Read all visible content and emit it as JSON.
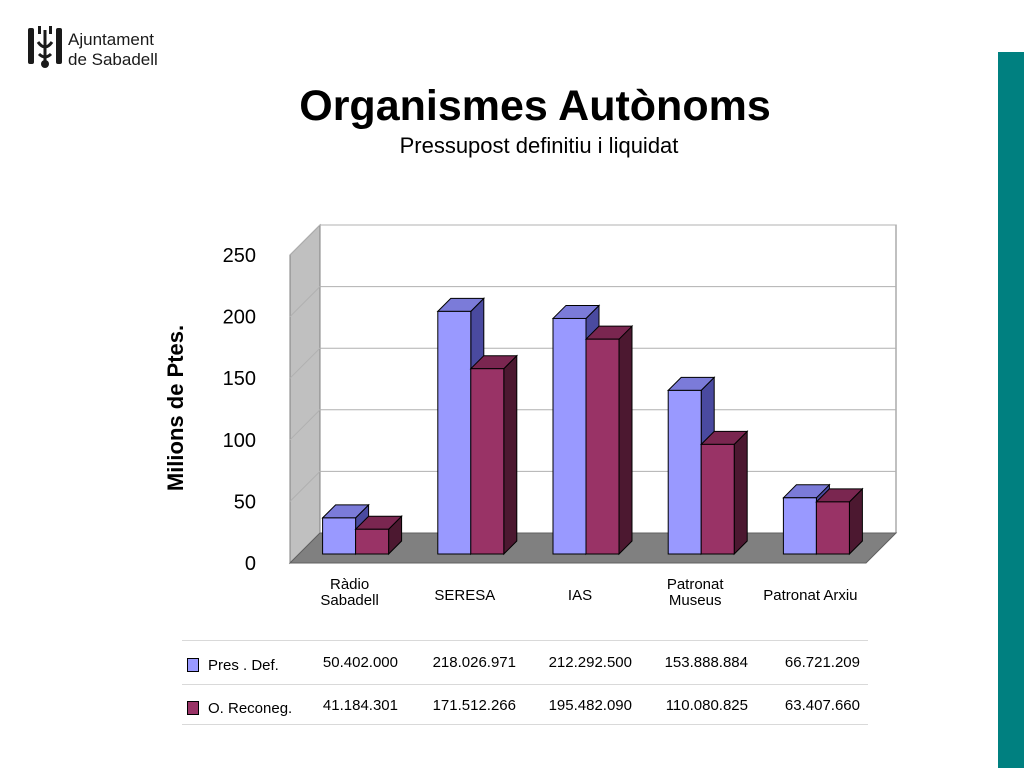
{
  "header": {
    "logo_line1": "Ajuntament",
    "logo_line2": "de Sabadell",
    "title": "Organismes Autònoms",
    "subtitle": "Pressupost definitiu i liquidat"
  },
  "colors": {
    "accent_bar": "#008080",
    "series_1_front": "#9999ff",
    "series_1_top": "#7b7bd9",
    "series_1_side": "#4a4aa0",
    "series_2_front": "#993366",
    "series_2_top": "#7a2650",
    "series_2_side": "#4c1830",
    "floor": "#808080",
    "back_wall": "#ffffff",
    "side_wall": "#c0c0c0"
  },
  "chart_data": {
    "type": "bar",
    "title": "Organismes Autònoms",
    "subtitle": "Pressupost definitiu i liquidat",
    "xlabel": "",
    "ylabel": "Milions de Ptes.",
    "ylim": [
      0,
      250
    ],
    "yticks": [
      "0",
      "50",
      "100",
      "150",
      "200",
      "250"
    ],
    "grid": true,
    "style": "3d-clustered",
    "categories": [
      "Ràdio Sabadell",
      "SERESA",
      "IAS",
      "Patronat Museus",
      "Patronat Arxiu"
    ],
    "category_lines": [
      [
        "Ràdio",
        "Sabadell"
      ],
      [
        "SERESA"
      ],
      [
        "IAS"
      ],
      [
        "Patronat",
        "Museus"
      ],
      [
        "Patronat Arxiu"
      ]
    ],
    "series": [
      {
        "name": "Pres . Def.",
        "values": [
          50.402,
          218.027,
          212.293,
          153.889,
          66.721
        ],
        "labels": [
          "50.402.000",
          "218.026.971",
          "212.292.500",
          "153.888.884",
          "66.721.209"
        ]
      },
      {
        "name": "O.  Reconeg.",
        "values": [
          41.184,
          171.512,
          195.482,
          110.081,
          63.408
        ],
        "labels": [
          "41.184.301",
          "171.512.266",
          "195.482.090",
          "110.080.825",
          "63.407.660"
        ]
      }
    ]
  }
}
